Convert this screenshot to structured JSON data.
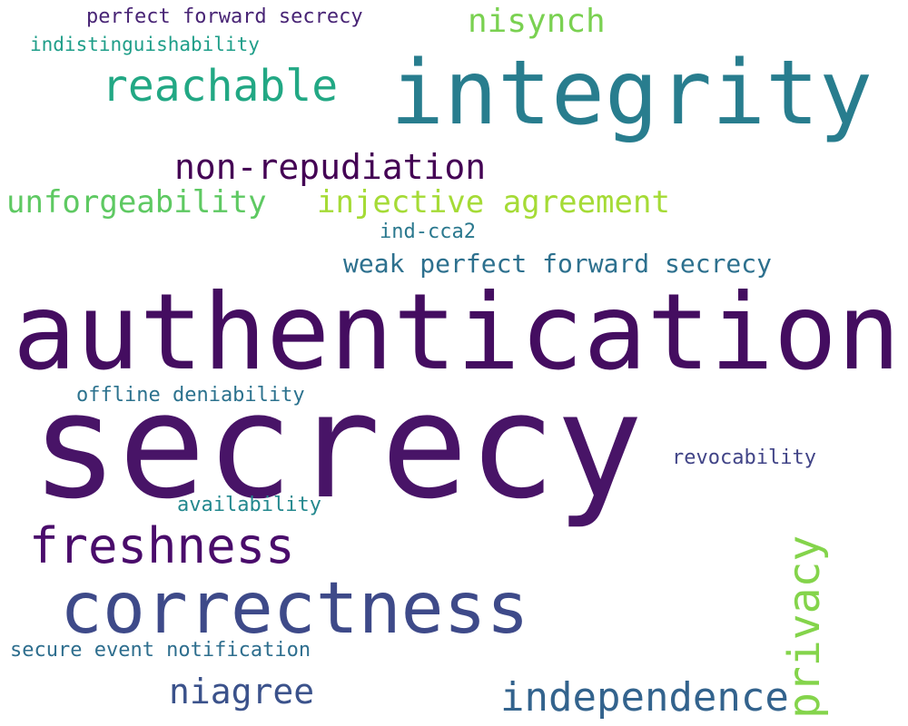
{
  "words": [
    {
      "text": "perfect forward secrecy",
      "color": "#482475"
    },
    {
      "text": "nisynch",
      "color": "#7ad151"
    },
    {
      "text": "indistinguishability",
      "color": "#1f9e89"
    },
    {
      "text": "reachable",
      "color": "#22a884"
    },
    {
      "text": "integrity",
      "color": "#287d8e"
    },
    {
      "text": "non-repudiation",
      "color": "#440154"
    },
    {
      "text": "unforgeability",
      "color": "#5ec962"
    },
    {
      "text": "injective agreement",
      "color": "#a5db36"
    },
    {
      "text": "ind-cca2",
      "color": "#2a788e"
    },
    {
      "text": "weak perfect forward secrecy",
      "color": "#2d708e"
    },
    {
      "text": "authentication",
      "color": "#440d60"
    },
    {
      "text": "offline deniability",
      "color": "#2c728e"
    },
    {
      "text": "secrecy",
      "color": "#481467"
    },
    {
      "text": "revocability",
      "color": "#414487"
    },
    {
      "text": "availability",
      "color": "#23888e"
    },
    {
      "text": "freshness",
      "color": "#4a0c6b"
    },
    {
      "text": "privacy",
      "color": "#84d44b"
    },
    {
      "text": "correctness",
      "color": "#3e4a89"
    },
    {
      "text": "secure event notification",
      "color": "#2e6e8e"
    },
    {
      "text": "niagree",
      "color": "#3b528b"
    },
    {
      "text": "independence",
      "color": "#33638d"
    }
  ]
}
